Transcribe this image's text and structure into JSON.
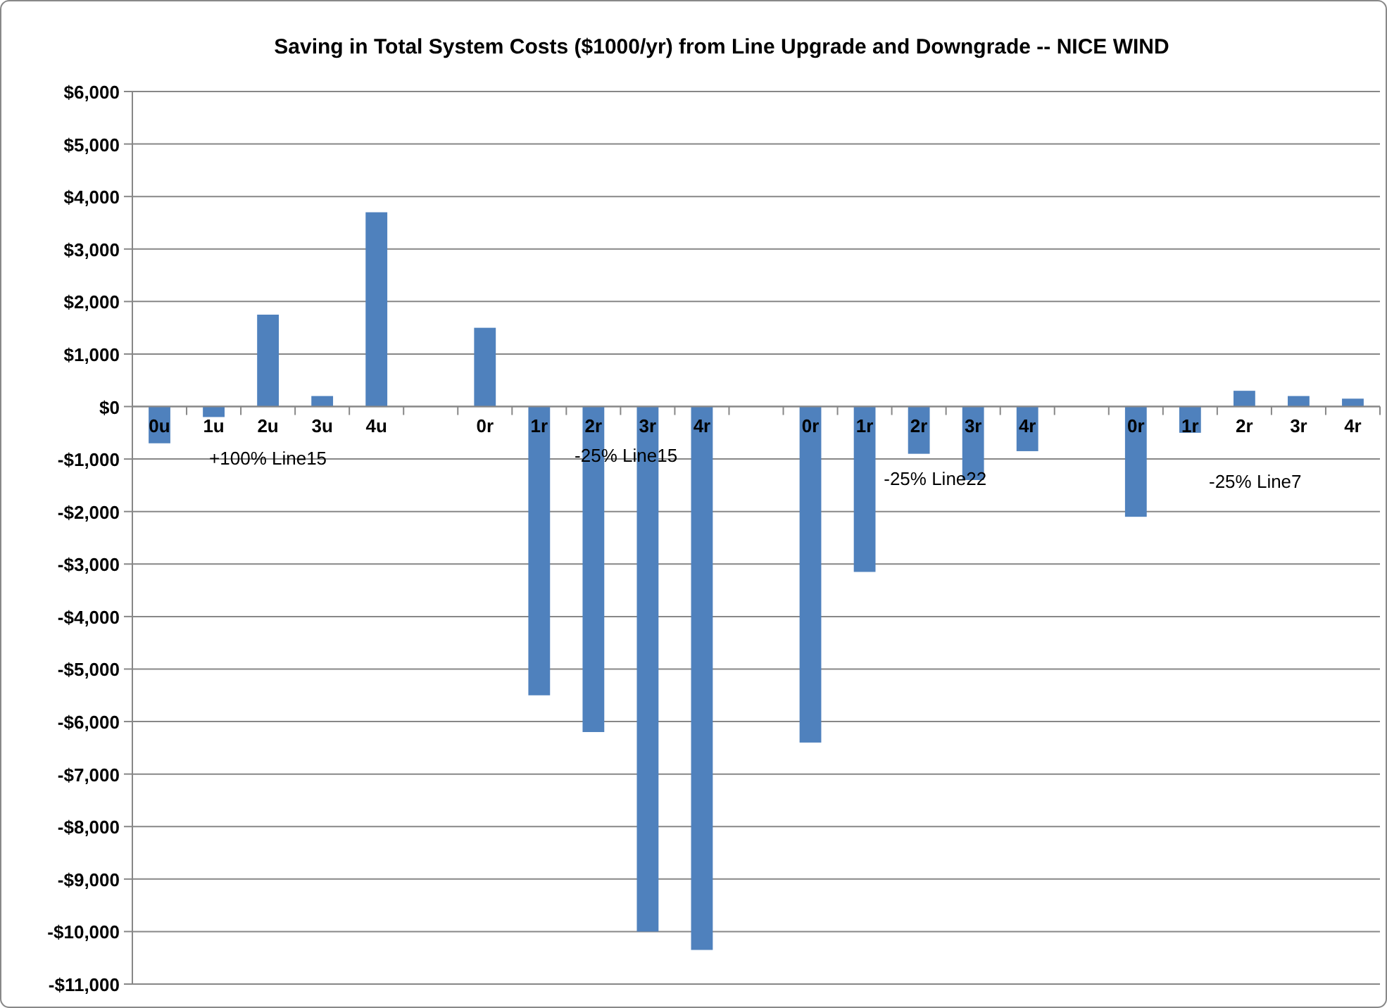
{
  "chart_data": {
    "type": "bar",
    "title": "Saving in Total System Costs ($1000/yr) from Line Upgrade and Downgrade -- NICE WIND",
    "categories": [
      "0u",
      "1u",
      "2u",
      "3u",
      "4u",
      null,
      "0r",
      "1r",
      "2r",
      "3r",
      "4r",
      null,
      "0r",
      "1r",
      "2r",
      "3r",
      "4r",
      null,
      "0r",
      "1r",
      "2r",
      "3r",
      "4r"
    ],
    "values": [
      -700,
      -200,
      1750,
      200,
      3700,
      null,
      1500,
      -5500,
      -6200,
      -10000,
      -10350,
      null,
      -6400,
      -3150,
      -900,
      -1400,
      -850,
      null,
      -2100,
      -500,
      300,
      200,
      150
    ],
    "color": "#4f81bd",
    "ylim": [
      -11000,
      6000
    ],
    "yticks": [
      {
        "value": -11000,
        "label": "-$11,000"
      },
      {
        "value": -10000,
        "label": "-$10,000"
      },
      {
        "value": -9000,
        "label": "-$9,000"
      },
      {
        "value": -8000,
        "label": "-$8,000"
      },
      {
        "value": -7000,
        "label": "-$7,000"
      },
      {
        "value": -6000,
        "label": "-$6,000"
      },
      {
        "value": -5000,
        "label": "-$5,000"
      },
      {
        "value": -4000,
        "label": "-$4,000"
      },
      {
        "value": -3000,
        "label": "-$3,000"
      },
      {
        "value": -2000,
        "label": "-$2,000"
      },
      {
        "value": -1000,
        "label": "-$1,000"
      },
      {
        "value": 0,
        "label": "$0"
      },
      {
        "value": 1000,
        "label": "$1,000"
      },
      {
        "value": 2000,
        "label": "$2,000"
      },
      {
        "value": 3000,
        "label": "$3,000"
      },
      {
        "value": 4000,
        "label": "$4,000"
      },
      {
        "value": 5000,
        "label": "$5,000"
      },
      {
        "value": 6000,
        "label": "$6,000"
      }
    ],
    "grid": "y",
    "annotations": [
      "+100% Line15",
      "-25% Line15",
      "-25% Line22",
      "-25% Line7"
    ]
  }
}
